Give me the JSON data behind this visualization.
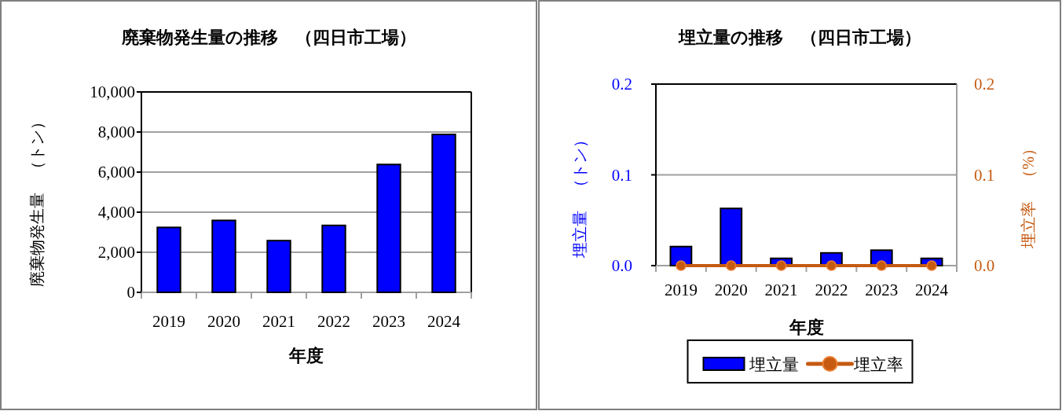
{
  "chart_data": [
    {
      "type": "bar",
      "title": "廃棄物発生量の推移　（四日市工場）",
      "xlabel": "年度",
      "ylabel": "廃棄物発生量　（トン）",
      "categories": [
        "2019",
        "2020",
        "2021",
        "2022",
        "2023",
        "2024"
      ],
      "series": [
        {
          "color": "#0000ff",
          "values": [
            3240,
            3590,
            2580,
            3340,
            6380,
            7880
          ]
        }
      ],
      "ylim": [
        0,
        10000
      ],
      "yticks": [
        {
          "value": 0,
          "label": "0"
        },
        {
          "value": 2000,
          "label": "2,000"
        },
        {
          "value": 4000,
          "label": "4,000"
        },
        {
          "value": 6000,
          "label": "6,000"
        },
        {
          "value": 8000,
          "label": "8,000"
        },
        {
          "value": 10000,
          "label": "10,000"
        }
      ],
      "grid": "y"
    },
    {
      "type": "bar",
      "title": "埋立量の推移　（四日市工場）",
      "xlabel": "年度",
      "ylabel": "埋立量　（トン）",
      "y2label": "埋立率　（%）",
      "categories": [
        "2019",
        "2020",
        "2021",
        "2022",
        "2023",
        "2024"
      ],
      "series": [
        {
          "name": "埋立量",
          "color": "#0000ff",
          "values": [
            0.021,
            0.063,
            0.008,
            0.014,
            0.017,
            0.008
          ]
        },
        {
          "name": "埋立率",
          "type": "line",
          "axis": "y2",
          "color": "#c55a11",
          "marker": "circle",
          "values": [
            0,
            0,
            0,
            0,
            0,
            0
          ]
        }
      ],
      "ylim": [
        0,
        0.2
      ],
      "yticks": [
        {
          "value": 0,
          "label": "0.0"
        },
        0.1,
        0.2
      ],
      "y2lim": [
        0,
        0.2
      ],
      "y2ticks": [
        {
          "value": 0,
          "label": "0.0"
        },
        0.1,
        0.2
      ],
      "grid": "y",
      "legend": "bottom"
    }
  ]
}
